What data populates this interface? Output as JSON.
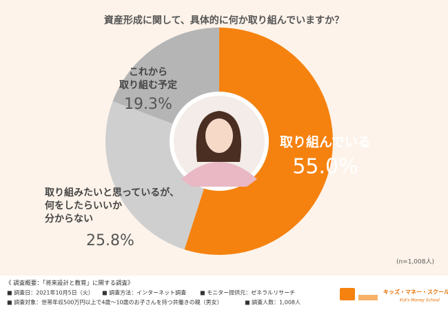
{
  "chart_data": {
    "type": "donut",
    "title": "資産形成に関して、具体的に何か取り組んでいますか？",
    "categories": [
      [
        "取り組んでいる"
      ],
      [
        "取り組みたいと思っているが、",
        "何をしたらいいか",
        "分からない"
      ],
      [
        "これから",
        "取り組む予定"
      ]
    ],
    "values": [
      55.0,
      25.8,
      19.3
    ],
    "value_labels": [
      "55.0%",
      "25.8%",
      "19.3%"
    ],
    "colors": [
      "#f5820f",
      "#cfcfcf",
      "#b5b5b5"
    ],
    "note": "(n=1,008人)"
  },
  "survey": {
    "heading": "《 調査概要：「将来設計と教育」に関する調査》",
    "lines": [
      [
        "■ 調査日：2021年10月5日（火）",
        "■ 調査方法：インターネット調査",
        "■ モニター提供元：ゼネラルリサーチ"
      ],
      [
        "■ 調査対象：世帯年収500万円以上で4歳〜10歳のお子さんを持つ共働きの親（男女）",
        "■ 調査人数：1,008人"
      ]
    ]
  },
  "logo": {
    "name": "キッズ・マネー・スクール",
    "sub": "Kid's Money School"
  }
}
